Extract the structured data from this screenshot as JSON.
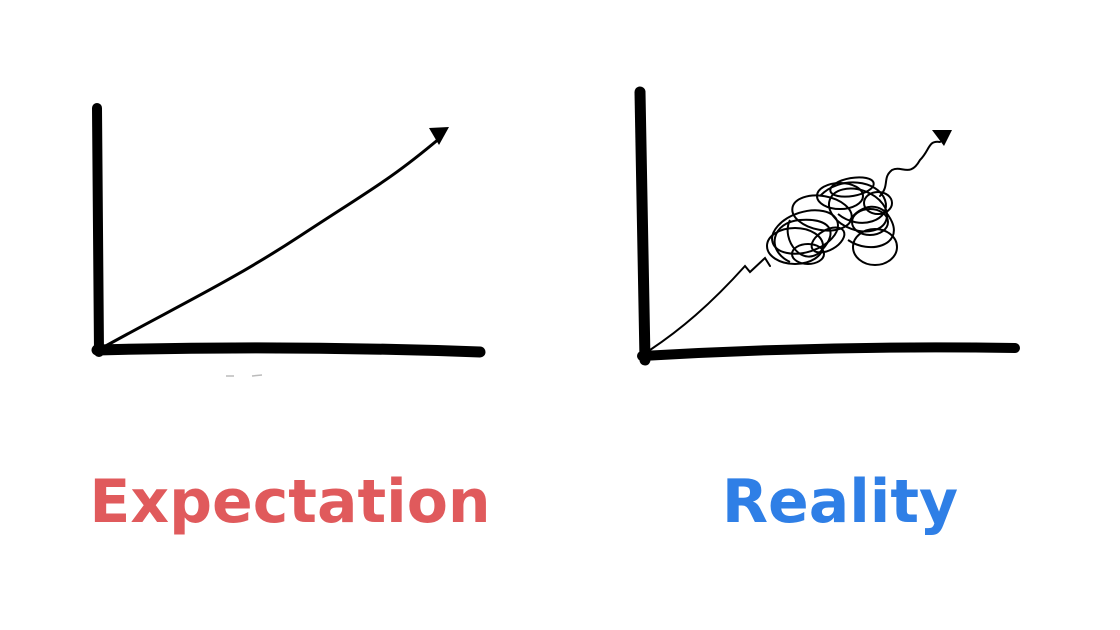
{
  "panels": [
    {
      "caption": "Expectation",
      "caption_color": "#e05a5c",
      "curve": "straight rising line with arrowhead"
    },
    {
      "caption": "Reality",
      "caption_color": "#2f7fe6",
      "curve": "rising line with tangled scribble, then arrowhead"
    }
  ],
  "colors": {
    "ink": "#000000",
    "background": "#ffffff"
  }
}
